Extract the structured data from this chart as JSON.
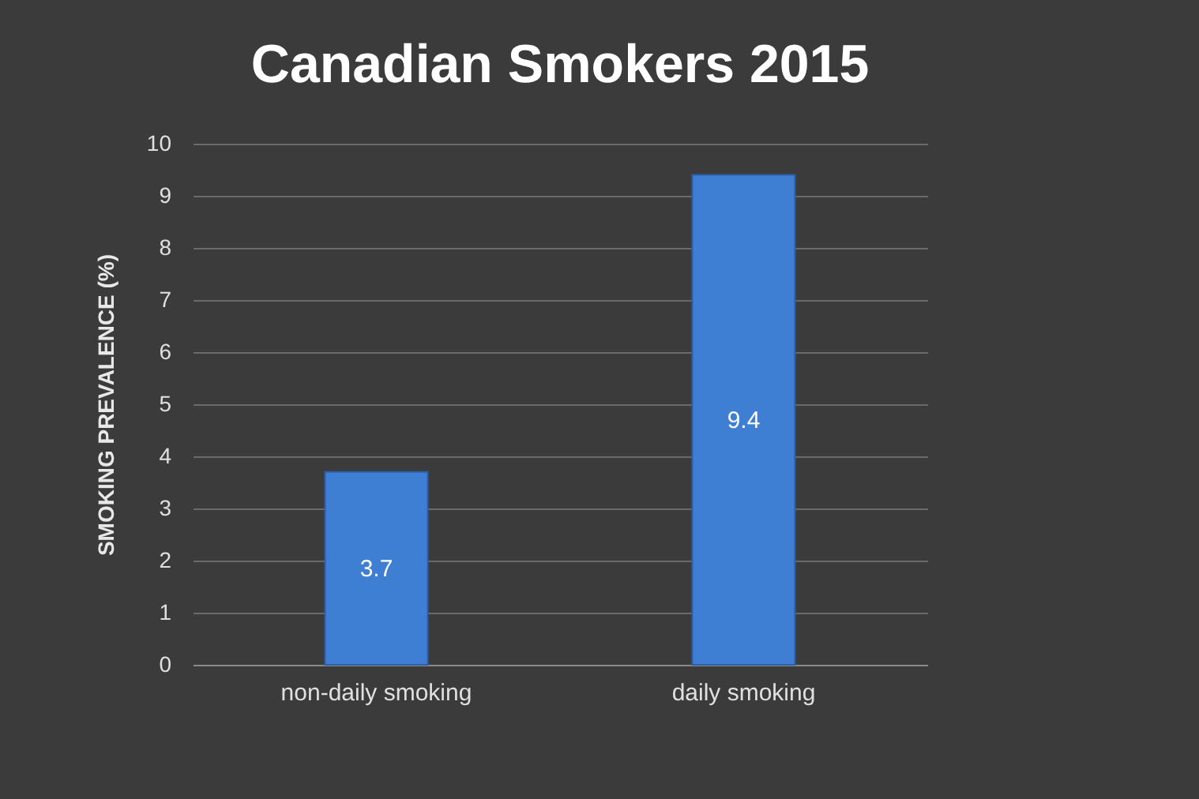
{
  "chart_data": {
    "type": "bar",
    "title": "Canadian Smokers 2015",
    "ylabel": "SMOKING PREVALENCE (%)",
    "categories": [
      "non-daily smoking",
      "daily smoking"
    ],
    "values": [
      3.7,
      9.4
    ],
    "color": "#3f7fd3",
    "ylim": [
      0,
      10
    ],
    "yticks": [
      0,
      1,
      2,
      3,
      4,
      5,
      6,
      7,
      8,
      9,
      10
    ],
    "grid": "y",
    "data_labels": true
  }
}
